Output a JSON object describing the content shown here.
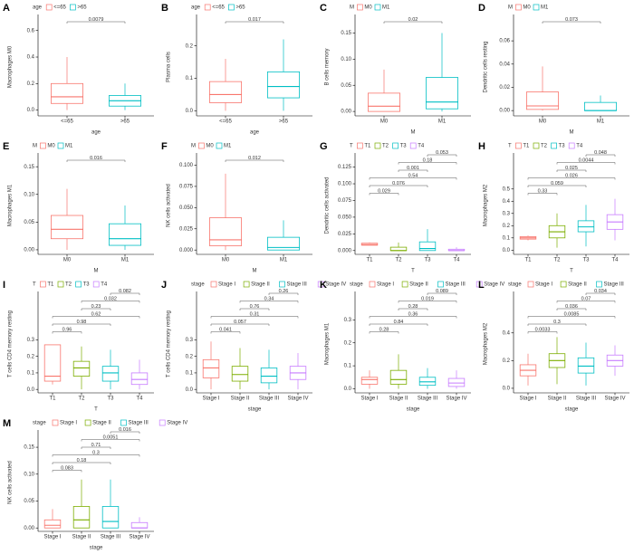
{
  "chart_data": [
    {
      "type": "box",
      "panel": "A",
      "ylabel": "Macrophages M0",
      "xlabel": "age",
      "legend_title": "age",
      "categories": [
        "<=65",
        ">65"
      ],
      "colors": [
        "#F8766D",
        "#00BFC4"
      ],
      "boxes": [
        {
          "min": 0,
          "q1": 0.05,
          "median": 0.1,
          "q3": 0.2,
          "max": 0.4
        },
        {
          "min": 0,
          "q1": 0.03,
          "median": 0.07,
          "q3": 0.11,
          "max": 0.2
        }
      ],
      "ylim": [
        -0.03,
        0.68
      ],
      "yticks": [
        {
          "value": 0,
          "label": "0.0"
        },
        {
          "value": 0.2,
          "label": "0.2"
        },
        {
          "value": 0.4,
          "label": "0.4"
        },
        {
          "value": 0.6,
          "label": "0.6"
        }
      ],
      "comparisons": [
        {
          "pair": [
            0,
            1
          ],
          "label": "0.0079"
        }
      ]
    },
    {
      "type": "box",
      "panel": "B",
      "ylabel": "Plasma cells",
      "xlabel": "age",
      "legend_title": "age",
      "categories": [
        "<=65",
        ">65"
      ],
      "colors": [
        "#F8766D",
        "#00BFC4"
      ],
      "boxes": [
        {
          "min": 0,
          "q1": 0.025,
          "median": 0.05,
          "q3": 0.09,
          "max": 0.16
        },
        {
          "min": 0,
          "q1": 0.04,
          "median": 0.075,
          "q3": 0.12,
          "max": 0.22
        }
      ],
      "ylim": [
        -0.01,
        0.28
      ],
      "yticks": [
        {
          "value": 0,
          "label": "0.0"
        },
        0.1,
        0.2
      ],
      "comparisons": [
        {
          "pair": [
            0,
            1
          ],
          "label": "0.017"
        }
      ]
    },
    {
      "type": "box",
      "panel": "C",
      "ylabel": "B cells memory",
      "xlabel": "M",
      "legend_title": "M",
      "categories": [
        "M0",
        "M1"
      ],
      "colors": [
        "#F8766D",
        "#00BFC4"
      ],
      "boxes": [
        {
          "min": 0,
          "q1": 0,
          "median": 0.01,
          "q3": 0.035,
          "max": 0.08
        },
        {
          "min": 0,
          "q1": 0.005,
          "median": 0.018,
          "q3": 0.065,
          "max": 0.15
        }
      ],
      "ylim": [
        -0.005,
        0.175
      ],
      "yticks": [
        {
          "value": 0,
          "label": "0.00"
        },
        0.05,
        {
          "value": 0.1,
          "label": "0.10"
        },
        0.15
      ],
      "comparisons": [
        {
          "pair": [
            0,
            1
          ],
          "label": "0.02"
        }
      ]
    },
    {
      "type": "box",
      "panel": "D",
      "ylabel": "Dendritic cells resting",
      "xlabel": "M",
      "legend_title": "M",
      "categories": [
        "M0",
        "M1"
      ],
      "colors": [
        "#F8766D",
        "#00BFC4"
      ],
      "boxes": [
        {
          "min": 0,
          "q1": 0.001,
          "median": 0.004,
          "q3": 0.016,
          "max": 0.038
        },
        {
          "min": 0,
          "q1": 0,
          "median": 0,
          "q3": 0.007,
          "max": 0.013
        }
      ],
      "ylim": [
        -0.003,
        0.078
      ],
      "yticks": [
        {
          "value": 0,
          "label": "0.00"
        },
        0.02,
        0.04,
        0.06
      ],
      "comparisons": [
        {
          "pair": [
            0,
            1
          ],
          "label": "0.073"
        }
      ]
    },
    {
      "type": "box",
      "panel": "E",
      "ylabel": "Macrophages M1",
      "xlabel": "M",
      "legend_title": "M",
      "categories": [
        "M0",
        "M1"
      ],
      "colors": [
        "#F8766D",
        "#00BFC4"
      ],
      "boxes": [
        {
          "min": 0,
          "q1": 0.02,
          "median": 0.037,
          "q3": 0.062,
          "max": 0.11
        },
        {
          "min": 0,
          "q1": 0.008,
          "median": 0.02,
          "q3": 0.047,
          "max": 0.08
        }
      ],
      "ylim": [
        -0.005,
        0.165
      ],
      "yticks": [
        {
          "value": 0,
          "label": "0.00"
        },
        0.05,
        {
          "value": 0.1,
          "label": "0.10"
        },
        0.15
      ],
      "comparisons": [
        {
          "pair": [
            0,
            1
          ],
          "label": "0.016"
        }
      ]
    },
    {
      "type": "box",
      "panel": "F",
      "ylabel": "NK cells activated",
      "xlabel": "M",
      "legend_title": "M",
      "categories": [
        "M0",
        "M1"
      ],
      "colors": [
        "#F8766D",
        "#00BFC4"
      ],
      "boxes": [
        {
          "min": 0,
          "q1": 0.005,
          "median": 0.012,
          "q3": 0.038,
          "max": 0.09
        },
        {
          "min": 0,
          "q1": 0,
          "median": 0.003,
          "q3": 0.015,
          "max": 0.035
        }
      ],
      "ylim": [
        -0.003,
        0.108
      ],
      "yticks": [
        {
          "value": 0,
          "label": "0.000"
        },
        0.025,
        {
          "value": 0.05,
          "label": "0.050"
        },
        0.075,
        {
          "value": 0.1,
          "label": "0.100"
        }
      ],
      "comparisons": [
        {
          "pair": [
            0,
            1
          ],
          "label": "0.012"
        }
      ]
    },
    {
      "type": "box",
      "panel": "G",
      "ylabel": "Dendritic cells activated",
      "xlabel": "T",
      "legend_title": "T",
      "categories": [
        "T1",
        "T2",
        "T3",
        "T4"
      ],
      "colors": [
        "#F8766D",
        "#7CAE00",
        "#00BFC4",
        "#C77CFF"
      ],
      "boxes": [
        {
          "min": 0.008,
          "q1": 0.008,
          "median": 0.009,
          "q3": 0.011,
          "max": 0.012
        },
        {
          "min": 0,
          "q1": 0,
          "median": 0,
          "q3": 0.005,
          "max": 0.012
        },
        {
          "min": 0,
          "q1": 0,
          "median": 0.003,
          "q3": 0.013,
          "max": 0.032
        },
        {
          "min": 0,
          "q1": 0,
          "median": 0,
          "q3": 0.002,
          "max": 0.005
        }
      ],
      "ylim": [
        -0.003,
        0.138
      ],
      "yticks": [
        {
          "value": 0,
          "label": "0.000"
        },
        0.025,
        {
          "value": 0.05,
          "label": "0.050"
        },
        0.075,
        {
          "value": 0.1,
          "label": "0.100"
        },
        0.125
      ],
      "comparisons": [
        {
          "pair": [
            0,
            1
          ],
          "label": "0.029"
        },
        {
          "pair": [
            0,
            2
          ],
          "label": "0.076"
        },
        {
          "pair": [
            0,
            3
          ],
          "label": "0.54"
        },
        {
          "pair": [
            1,
            2
          ],
          "label": "0.001"
        },
        {
          "pair": [
            1,
            3
          ],
          "label": "0.18"
        },
        {
          "pair": [
            2,
            3
          ],
          "label": "0.053"
        }
      ]
    },
    {
      "type": "box",
      "panel": "H",
      "ylabel": "Macrophages M2",
      "xlabel": "T",
      "legend_title": "T",
      "categories": [
        "T1",
        "T2",
        "T3",
        "T4"
      ],
      "colors": [
        "#F8766D",
        "#7CAE00",
        "#00BFC4",
        "#C77CFF"
      ],
      "boxes": [
        {
          "min": 0.08,
          "q1": 0.09,
          "median": 0.1,
          "q3": 0.11,
          "max": 0.12
        },
        {
          "min": 0.02,
          "q1": 0.1,
          "median": 0.15,
          "q3": 0.2,
          "max": 0.3
        },
        {
          "min": 0.03,
          "q1": 0.15,
          "median": 0.19,
          "q3": 0.24,
          "max": 0.37
        },
        {
          "min": 0.08,
          "q1": 0.17,
          "median": 0.23,
          "q3": 0.29,
          "max": 0.42
        }
      ],
      "ylim": [
        -0.02,
        0.75
      ],
      "yticks": [
        {
          "value": 0,
          "label": "0.0"
        },
        0.1,
        0.2,
        0.3,
        0.4,
        0.5
      ],
      "comparisons": [
        {
          "pair": [
            0,
            1
          ],
          "label": "0.33"
        },
        {
          "pair": [
            0,
            2
          ],
          "label": "0.059"
        },
        {
          "pair": [
            0,
            3
          ],
          "label": "0.026"
        },
        {
          "pair": [
            1,
            2
          ],
          "label": "0.025"
        },
        {
          "pair": [
            1,
            3
          ],
          "label": "0.0044"
        },
        {
          "pair": [
            2,
            3
          ],
          "label": "0.048"
        }
      ]
    },
    {
      "type": "box",
      "panel": "I",
      "ylabel": "T cells CD4 memory resting",
      "xlabel": "T",
      "legend_title": "T",
      "categories": [
        "T1",
        "T2",
        "T3",
        "T4"
      ],
      "colors": [
        "#F8766D",
        "#7CAE00",
        "#00BFC4",
        "#C77CFF"
      ],
      "boxes": [
        {
          "min": 0.03,
          "q1": 0.05,
          "median": 0.08,
          "q3": 0.27,
          "max": 0.27
        },
        {
          "min": 0,
          "q1": 0.08,
          "median": 0.13,
          "q3": 0.17,
          "max": 0.26
        },
        {
          "min": 0,
          "q1": 0.05,
          "median": 0.1,
          "q3": 0.14,
          "max": 0.24
        },
        {
          "min": 0,
          "q1": 0.03,
          "median": 0.06,
          "q3": 0.1,
          "max": 0.18
        }
      ],
      "ylim": [
        -0.01,
        0.56
      ],
      "yticks": [
        {
          "value": 0,
          "label": "0.0"
        },
        0.1,
        0.2,
        0.3
      ],
      "comparisons": [
        {
          "pair": [
            0,
            1
          ],
          "label": "0.96"
        },
        {
          "pair": [
            0,
            2
          ],
          "label": "0.98"
        },
        {
          "pair": [
            0,
            3
          ],
          "label": "0.62"
        },
        {
          "pair": [
            1,
            2
          ],
          "label": "0.23"
        },
        {
          "pair": [
            1,
            3
          ],
          "label": "0.032"
        },
        {
          "pair": [
            2,
            3
          ],
          "label": "0.082"
        }
      ]
    },
    {
      "type": "box",
      "panel": "J",
      "ylabel": "T cells CD4 memory resting",
      "xlabel": "stage",
      "legend_title": "stage",
      "categories": [
        "Stage I",
        "Stage II",
        "Stage III",
        "Stage IV"
      ],
      "colors": [
        "#F8766D",
        "#7CAE00",
        "#00BFC4",
        "#C77CFF"
      ],
      "boxes": [
        {
          "min": 0,
          "q1": 0.07,
          "median": 0.13,
          "q3": 0.18,
          "max": 0.29
        },
        {
          "min": 0,
          "q1": 0.05,
          "median": 0.09,
          "q3": 0.14,
          "max": 0.25
        },
        {
          "min": 0,
          "q1": 0.04,
          "median": 0.08,
          "q3": 0.13,
          "max": 0.24
        },
        {
          "min": 0,
          "q1": 0.06,
          "median": 0.1,
          "q3": 0.14,
          "max": 0.22
        }
      ],
      "ylim": [
        -0.01,
        0.56
      ],
      "yticks": [
        {
          "value": 0,
          "label": "0.0"
        },
        0.1,
        0.2,
        0.3
      ],
      "comparisons": [
        {
          "pair": [
            0,
            1
          ],
          "label": "0.041"
        },
        {
          "pair": [
            0,
            2
          ],
          "label": "0.057"
        },
        {
          "pair": [
            0,
            3
          ],
          "label": "0.31"
        },
        {
          "pair": [
            1,
            2
          ],
          "label": "0.76"
        },
        {
          "pair": [
            1,
            3
          ],
          "label": "0.34"
        },
        {
          "pair": [
            2,
            3
          ],
          "label": "0.26"
        }
      ]
    },
    {
      "type": "box",
      "panel": "K",
      "ylabel": "Macrophages M1",
      "xlabel": "stage",
      "legend_title": "stage",
      "categories": [
        "Stage I",
        "Stage II",
        "Stage III",
        "Stage IV"
      ],
      "colors": [
        "#F8766D",
        "#7CAE00",
        "#00BFC4",
        "#C77CFF"
      ],
      "boxes": [
        {
          "min": 0,
          "q1": 0.02,
          "median": 0.04,
          "q3": 0.05,
          "max": 0.08
        },
        {
          "min": 0,
          "q1": 0.02,
          "median": 0.04,
          "q3": 0.08,
          "max": 0.15
        },
        {
          "min": 0,
          "q1": 0.015,
          "median": 0.03,
          "q3": 0.05,
          "max": 0.09
        },
        {
          "min": 0,
          "q1": 0.01,
          "median": 0.025,
          "q3": 0.045,
          "max": 0.08
        }
      ],
      "ylim": [
        -0.01,
        0.4
      ],
      "yticks": [
        {
          "value": 0,
          "label": "0.0"
        },
        0.1,
        0.2,
        0.3
      ],
      "comparisons": [
        {
          "pair": [
            0,
            1
          ],
          "label": "0.28"
        },
        {
          "pair": [
            0,
            2
          ],
          "label": "0.84"
        },
        {
          "pair": [
            0,
            3
          ],
          "label": "0.36"
        },
        {
          "pair": [
            1,
            2
          ],
          "label": "0.28"
        },
        {
          "pair": [
            1,
            3
          ],
          "label": "0.019"
        },
        {
          "pair": [
            2,
            3
          ],
          "label": "0.089"
        }
      ]
    },
    {
      "type": "box",
      "panel": "L",
      "ylabel": "Macrophages M2",
      "xlabel": "stage",
      "legend_title": "stage",
      "categories": [
        "Stage I",
        "Stage II",
        "Stage III",
        "Stage IV"
      ],
      "colors": [
        "#F8766D",
        "#7CAE00",
        "#00BFC4",
        "#C77CFF"
      ],
      "boxes": [
        {
          "min": 0.02,
          "q1": 0.09,
          "median": 0.13,
          "q3": 0.17,
          "max": 0.25
        },
        {
          "min": 0.03,
          "q1": 0.15,
          "median": 0.2,
          "q3": 0.25,
          "max": 0.37
        },
        {
          "min": 0.02,
          "q1": 0.11,
          "median": 0.16,
          "q3": 0.22,
          "max": 0.33
        },
        {
          "min": 0.09,
          "q1": 0.16,
          "median": 0.2,
          "q3": 0.24,
          "max": 0.31
        }
      ],
      "ylim": [
        -0.02,
        0.66
      ],
      "yticks": [
        {
          "value": 0,
          "label": "0.0"
        },
        0.2,
        0.4
      ],
      "comparisons": [
        {
          "pair": [
            0,
            1
          ],
          "label": "0.0033"
        },
        {
          "pair": [
            0,
            2
          ],
          "label": "0.3"
        },
        {
          "pair": [
            0,
            3
          ],
          "label": "0.0085"
        },
        {
          "pair": [
            1,
            2
          ],
          "label": "0.036"
        },
        {
          "pair": [
            1,
            3
          ],
          "label": "0.07"
        },
        {
          "pair": [
            2,
            3
          ],
          "label": "0.034"
        }
      ]
    },
    {
      "type": "box",
      "panel": "M",
      "ylabel": "NK cells activated",
      "xlabel": "stage",
      "legend_title": "stage",
      "categories": [
        "Stage I",
        "Stage II",
        "Stage III",
        "Stage IV"
      ],
      "colors": [
        "#F8766D",
        "#7CAE00",
        "#00BFC4",
        "#C77CFF"
      ],
      "boxes": [
        {
          "min": 0,
          "q1": 0,
          "median": 0.005,
          "q3": 0.015,
          "max": 0.035
        },
        {
          "min": 0,
          "q1": 0,
          "median": 0.015,
          "q3": 0.04,
          "max": 0.09
        },
        {
          "min": 0,
          "q1": 0,
          "median": 0.012,
          "q3": 0.04,
          "max": 0.09
        },
        {
          "min": 0,
          "q1": 0,
          "median": 0,
          "q3": 0.01,
          "max": 0.02
        }
      ],
      "ylim": [
        -0.003,
        0.172
      ],
      "yticks": [
        {
          "value": 0,
          "label": "0.00"
        },
        0.05,
        {
          "value": 0.1,
          "label": "0.10"
        },
        0.15
      ],
      "comparisons": [
        {
          "pair": [
            0,
            1
          ],
          "label": "0.083"
        },
        {
          "pair": [
            0,
            2
          ],
          "label": "0.18"
        },
        {
          "pair": [
            0,
            3
          ],
          "label": "0.3"
        },
        {
          "pair": [
            1,
            2
          ],
          "label": "0.71"
        },
        {
          "pair": [
            1,
            3
          ],
          "label": "0.0051"
        },
        {
          "pair": [
            2,
            3
          ],
          "label": "0.016"
        }
      ]
    }
  ]
}
